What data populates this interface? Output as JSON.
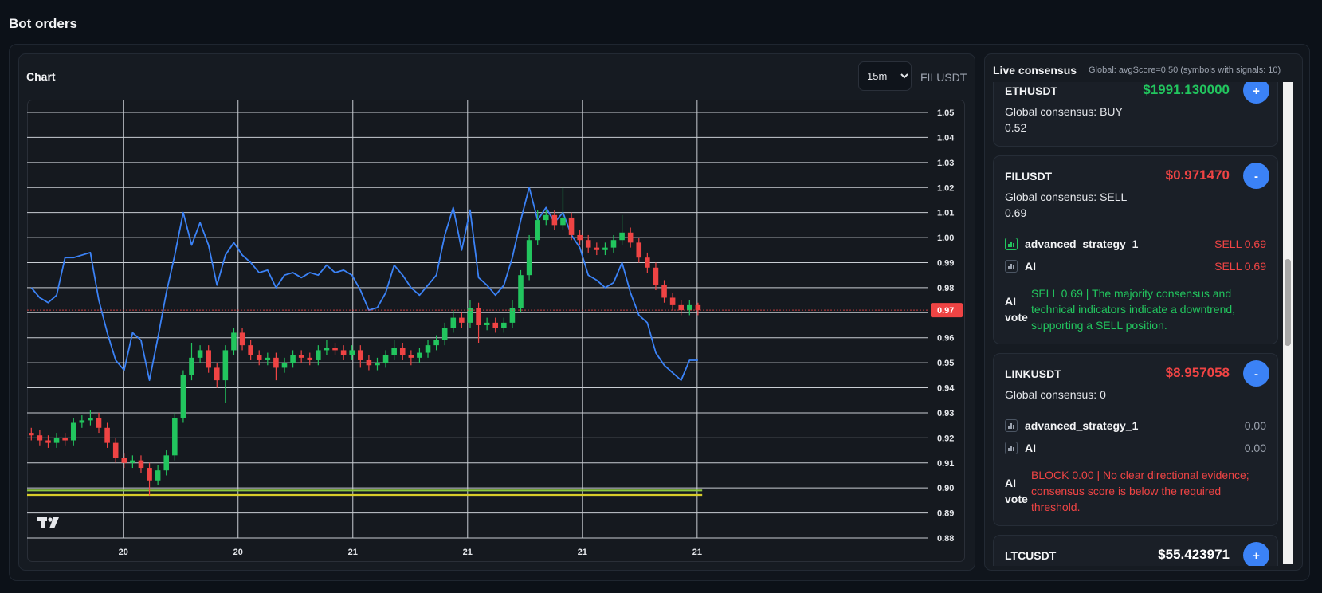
{
  "header": {
    "title": "Bot orders"
  },
  "chart_data": {
    "type": "candlestick",
    "title": "Chart",
    "interval": "15m",
    "symbol": "FILUSDT",
    "up_color": "#22c55e",
    "down_color": "#ef4444",
    "open": [
      0.922,
      0.921,
      0.919,
      0.918,
      0.92,
      0.919,
      0.926,
      0.927,
      0.928,
      0.924,
      0.918,
      0.912,
      0.91,
      0.911,
      0.908,
      0.903,
      0.907,
      0.913,
      0.928,
      0.945,
      0.952,
      0.955,
      0.948,
      0.943,
      0.955,
      0.962,
      0.957,
      0.953,
      0.951,
      0.952,
      0.948,
      0.95,
      0.953,
      0.952,
      0.951,
      0.955,
      0.956,
      0.955,
      0.953,
      0.955,
      0.951,
      0.949,
      0.95,
      0.953,
      0.956,
      0.953,
      0.952,
      0.954,
      0.957,
      0.959,
      0.964,
      0.968,
      0.966,
      0.972,
      0.965,
      0.966,
      0.964,
      0.966,
      0.972,
      0.985,
      0.999,
      1.007,
      1.009,
      1.005,
      1.008,
      1.001,
      0.999,
      0.996,
      0.995,
      0.996,
      0.999,
      1.002,
      0.998,
      0.992,
      0.988,
      0.981,
      0.976,
      0.973,
      0.971,
      0.973
    ],
    "high": [
      0.924,
      0.923,
      0.921,
      0.922,
      0.922,
      0.928,
      0.929,
      0.931,
      0.93,
      0.926,
      0.92,
      0.914,
      0.913,
      0.913,
      0.91,
      0.909,
      0.915,
      0.93,
      0.947,
      0.958,
      0.957,
      0.957,
      0.95,
      0.957,
      0.964,
      0.964,
      0.959,
      0.955,
      0.954,
      0.954,
      0.952,
      0.955,
      0.955,
      0.954,
      0.957,
      0.959,
      0.958,
      0.957,
      0.957,
      0.957,
      0.953,
      0.952,
      0.955,
      0.959,
      0.958,
      0.955,
      0.956,
      0.959,
      0.961,
      0.966,
      0.971,
      0.97,
      0.975,
      0.974,
      0.968,
      0.968,
      0.968,
      0.975,
      0.987,
      1.001,
      1.011,
      1.011,
      1.011,
      1.02,
      1.01,
      1.003,
      1.001,
      0.998,
      0.998,
      1.001,
      1.009,
      1.004,
      1.0,
      0.994,
      0.99,
      0.983,
      0.978,
      0.975,
      0.975,
      0.974
    ],
    "low": [
      0.919,
      0.917,
      0.916,
      0.916,
      0.917,
      0.917,
      0.924,
      0.925,
      0.922,
      0.916,
      0.91,
      0.908,
      0.908,
      0.906,
      0.897,
      0.901,
      0.905,
      0.911,
      0.926,
      0.943,
      0.95,
      0.946,
      0.94,
      0.934,
      0.953,
      0.955,
      0.951,
      0.949,
      0.949,
      0.943,
      0.946,
      0.948,
      0.95,
      0.949,
      0.949,
      0.953,
      0.953,
      0.951,
      0.951,
      0.948,
      0.947,
      0.947,
      0.948,
      0.951,
      0.951,
      0.949,
      0.95,
      0.952,
      0.955,
      0.957,
      0.962,
      0.964,
      0.964,
      0.958,
      0.963,
      0.962,
      0.962,
      0.964,
      0.97,
      0.983,
      0.997,
      1.005,
      1.003,
      1.003,
      0.999,
      0.997,
      0.994,
      0.993,
      0.993,
      0.994,
      0.997,
      0.996,
      0.99,
      0.986,
      0.979,
      0.974,
      0.971,
      0.969,
      0.969,
      0.969
    ],
    "close": [
      0.921,
      0.919,
      0.918,
      0.92,
      0.919,
      0.926,
      0.927,
      0.928,
      0.924,
      0.918,
      0.912,
      0.91,
      0.911,
      0.908,
      0.903,
      0.907,
      0.913,
      0.928,
      0.945,
      0.952,
      0.955,
      0.948,
      0.943,
      0.955,
      0.962,
      0.957,
      0.953,
      0.951,
      0.952,
      0.948,
      0.95,
      0.953,
      0.952,
      0.951,
      0.955,
      0.956,
      0.955,
      0.953,
      0.955,
      0.951,
      0.949,
      0.95,
      0.953,
      0.956,
      0.953,
      0.952,
      0.954,
      0.957,
      0.959,
      0.964,
      0.968,
      0.966,
      0.972,
      0.965,
      0.966,
      0.964,
      0.966,
      0.972,
      0.985,
      0.999,
      1.007,
      1.009,
      1.005,
      1.008,
      1.001,
      0.999,
      0.996,
      0.995,
      0.996,
      0.999,
      1.002,
      0.998,
      0.992,
      0.988,
      0.981,
      0.976,
      0.973,
      0.971,
      0.973,
      0.971
    ],
    "overlay": {
      "color": "#3b82f6",
      "values": [
        0.98,
        0.976,
        0.974,
        0.977,
        0.992,
        0.992,
        0.993,
        0.994,
        0.975,
        0.962,
        0.951,
        0.947,
        0.962,
        0.959,
        0.943,
        0.96,
        0.978,
        0.993,
        1.01,
        0.997,
        1.006,
        0.997,
        0.981,
        0.993,
        0.998,
        0.993,
        0.99,
        0.986,
        0.987,
        0.98,
        0.985,
        0.986,
        0.984,
        0.986,
        0.985,
        0.989,
        0.986,
        0.987,
        0.985,
        0.979,
        0.971,
        0.972,
        0.978,
        0.989,
        0.985,
        0.98,
        0.977,
        0.981,
        0.985,
        1.001,
        1.012,
        0.995,
        1.011,
        0.984,
        0.981,
        0.977,
        0.981,
        0.992,
        1.007,
        1.02,
        1.007,
        1.012,
        1.006,
        1.01,
        1.001,
        0.996,
        0.985,
        0.983,
        0.98,
        0.982,
        0.99,
        0.978,
        0.969,
        0.966,
        0.954,
        0.949,
        0.946,
        0.943,
        0.951,
        0.951
      ]
    },
    "price_lines": [
      {
        "value": 0.899,
        "color": "#8dc63f"
      },
      {
        "value": 0.8972,
        "color": "#d8cc2a"
      }
    ],
    "last_price": {
      "value": 0.971,
      "label": "0.97",
      "color": "#ef4444"
    },
    "xlim": [
      -0.5,
      106.3
    ],
    "xticks": [
      {
        "value": 10.9,
        "label": "20"
      },
      {
        "value": 24.5,
        "label": "20"
      },
      {
        "value": 38.1,
        "label": "21"
      },
      {
        "value": 51.7,
        "label": "21"
      },
      {
        "value": 65.3,
        "label": "21"
      },
      {
        "value": 78.9,
        "label": "21"
      }
    ],
    "ylim": [
      0.88,
      1.0551
    ],
    "yticks": [
      0.88,
      0.89,
      {
        "value": 0.9,
        "label": "0.90"
      },
      0.91,
      0.92,
      0.93,
      0.94,
      0.95,
      0.96,
      0.97,
      0.98,
      0.99,
      {
        "value": 1,
        "label": "1.00"
      },
      1.01,
      1.02,
      1.03,
      1.04,
      1.05
    ],
    "grid": true
  },
  "consensus": {
    "title": "Live consensus",
    "summary": "Global: avgScore=0.50 (symbols with signals: 10)",
    "cards": [
      {
        "symbol": "ETHUSDT",
        "price": "$1991.130000",
        "price_color": "#22c55e",
        "action": "+",
        "consensus": "Global consensus: BUY 0.52"
      },
      {
        "symbol": "FILUSDT",
        "price": "$0.971470",
        "price_color": "#ef4444",
        "action": "-",
        "consensus": "Global consensus: SELL 0.69",
        "signals": [
          {
            "name": "advanced_strategy_1",
            "value": "SELL 0.69",
            "color": "#ef4444",
            "icon_color": "#22c55e"
          },
          {
            "name": "AI",
            "value": "SELL 0.69",
            "color": "#ef4444",
            "icon_color": "#9ca3af"
          }
        ],
        "vote_label": "AI vote",
        "vote": "SELL 0.69 | The majority consensus and technical indicators indicate a downtrend, supporting a SELL position.",
        "vote_color": "#22c55e"
      },
      {
        "symbol": "LINKUSDT",
        "price": "$8.957058",
        "price_color": "#ef4444",
        "action": "-",
        "consensus": "Global consensus: 0",
        "signals": [
          {
            "name": "advanced_strategy_1",
            "value": "0.00",
            "color": "#9ca3af",
            "icon_color": "#9ca3af"
          },
          {
            "name": "AI",
            "value": "0.00",
            "color": "#9ca3af",
            "icon_color": "#9ca3af"
          }
        ],
        "vote_label": "AI vote",
        "vote": "BLOCK 0.00 | No clear directional evidence; consensus score is below the required threshold.",
        "vote_color": "#ef4444"
      },
      {
        "symbol": "LTCUSDT",
        "price": "$55.423971",
        "price_color": "#ffffff",
        "action": "+",
        "consensus": ""
      }
    ]
  }
}
